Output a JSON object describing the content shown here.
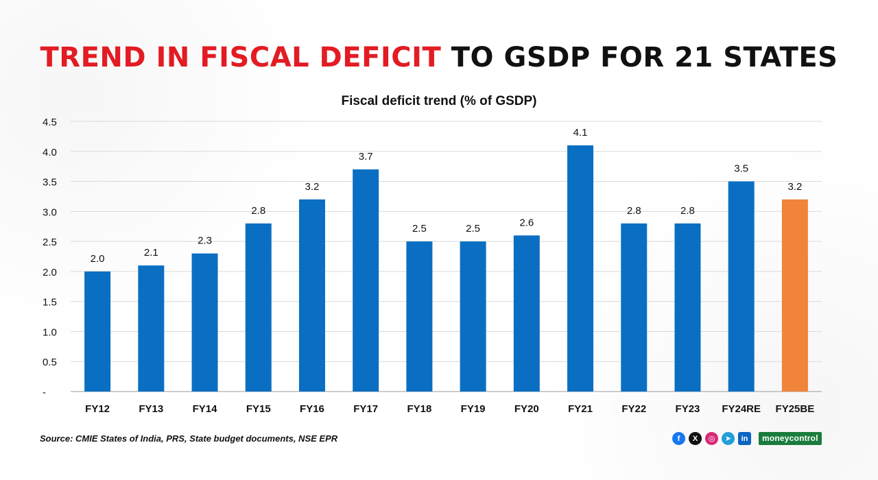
{
  "header": {
    "title_highlight": "TREND IN FISCAL DEFICIT",
    "title_rest": "TO GSDP FOR 21 STATES"
  },
  "chart_data": {
    "type": "bar",
    "title": "Fiscal deficit trend (% of GSDP)",
    "xlabel": "",
    "ylabel": "",
    "categories": [
      "FY12",
      "FY13",
      "FY14",
      "FY15",
      "FY16",
      "FY17",
      "FY18",
      "FY19",
      "FY20",
      "FY21",
      "FY22",
      "FY23",
      "FY24RE",
      "FY25BE"
    ],
    "values": [
      2.0,
      2.1,
      2.3,
      2.8,
      3.2,
      3.7,
      2.5,
      2.5,
      2.6,
      4.1,
      2.8,
      2.8,
      3.5,
      3.2
    ],
    "data_labels": [
      "2.0",
      "2.1",
      "2.3",
      "2.8",
      "3.2",
      "3.7",
      "2.5",
      "2.5",
      "2.6",
      "4.1",
      "2.8",
      "2.8",
      "3.5",
      "3.2"
    ],
    "ylim": [
      0,
      4.5
    ],
    "yticks": [
      0,
      0.5,
      1.0,
      1.5,
      2.0,
      2.5,
      3.0,
      3.5,
      4.0,
      4.5
    ],
    "ytick_labels": [
      "-",
      "0.5",
      "1.0",
      "1.5",
      "2.0",
      "2.5",
      "3.0",
      "3.5",
      "4.0",
      "4.5"
    ],
    "grid": true,
    "colors": {
      "default": "#0a6fc2",
      "highlight": "#f0843a"
    },
    "highlight_categories": [
      "FY25BE"
    ]
  },
  "footer": {
    "source": "Source: CMIE States of India, PRS, State budget documents, NSE EPR",
    "social": [
      {
        "name": "facebook-icon",
        "glyph": "f"
      },
      {
        "name": "x-icon",
        "glyph": "X"
      },
      {
        "name": "instagram-icon",
        "glyph": "◎"
      },
      {
        "name": "telegram-icon",
        "glyph": "➤"
      },
      {
        "name": "linkedin-icon",
        "glyph": "in"
      }
    ],
    "brand": "moneycontrol"
  }
}
